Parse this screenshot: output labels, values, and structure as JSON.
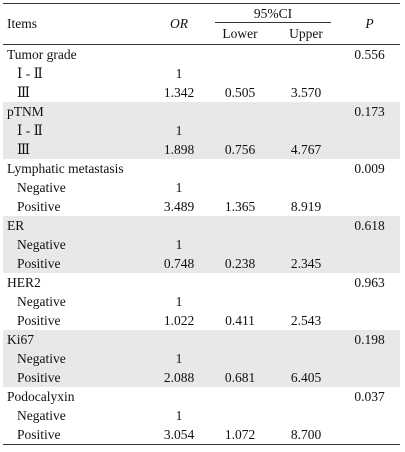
{
  "header": {
    "items": "Items",
    "or": "OR",
    "ci": "95%CI",
    "lower": "Lower",
    "upper": "Upper",
    "p": "P"
  },
  "groups": [
    {
      "label": "Tumor grade",
      "p": "0.556",
      "rows": [
        {
          "label": "Ⅰ - Ⅱ",
          "or": "1"
        },
        {
          "label": "Ⅲ",
          "or": "1.342",
          "lower": "0.505",
          "upper": "3.570"
        }
      ]
    },
    {
      "label": "pTNM",
      "p": "0.173",
      "rows": [
        {
          "label": "Ⅰ - Ⅱ",
          "or": "1"
        },
        {
          "label": "Ⅲ",
          "or": "1.898",
          "lower": "0.756",
          "upper": "4.767"
        }
      ]
    },
    {
      "label": "Lymphatic metastasis",
      "p": "0.009",
      "rows": [
        {
          "label": "Negative",
          "or": "1"
        },
        {
          "label": "Positive",
          "or": "3.489",
          "lower": "1.365",
          "upper": "8.919"
        }
      ]
    },
    {
      "label": "ER",
      "p": "0.618",
      "rows": [
        {
          "label": "Negative",
          "or": "1"
        },
        {
          "label": "Positive",
          "or": "0.748",
          "lower": "0.238",
          "upper": "2.345"
        }
      ]
    },
    {
      "label": "HER2",
      "p": "0.963",
      "rows": [
        {
          "label": "Negative",
          "or": "1"
        },
        {
          "label": "Positive",
          "or": "1.022",
          "lower": "0.411",
          "upper": "2.543"
        }
      ]
    },
    {
      "label": "Ki67",
      "p": "0.198",
      "rows": [
        {
          "label": "Negative",
          "or": "1"
        },
        {
          "label": "Positive",
          "or": "2.088",
          "lower": "0.681",
          "upper": "6.405"
        }
      ]
    },
    {
      "label": "Podocalyxin",
      "p": "0.037",
      "rows": [
        {
          "label": "Negative",
          "or": "1"
        },
        {
          "label": "Positive",
          "or": "3.054",
          "lower": "1.072",
          "upper": "8.700"
        }
      ]
    }
  ]
}
